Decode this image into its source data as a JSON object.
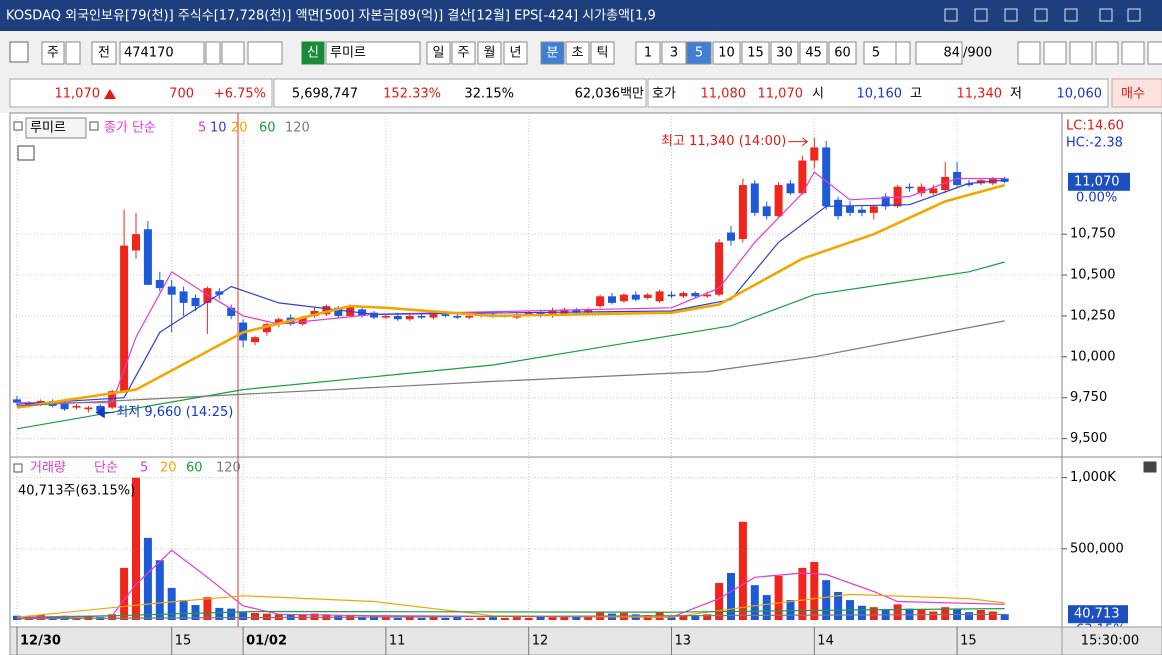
{
  "title_bar": {
    "text": "KOSDAQ 외국인보유[79(천)] 주식수[17,728(천)] 액면[500] 자본금[89(억)] 결산[12월] EPS[-424] 시가총액[1,9"
  },
  "toolbar": {
    "market": "주",
    "prev": "전",
    "code": "474170",
    "credit": "신",
    "name": "루미르",
    "periods": [
      "일",
      "주",
      "월",
      "년",
      "분",
      "초",
      "틱"
    ],
    "intervals": [
      "1",
      "3",
      "5",
      "10",
      "15",
      "30",
      "45",
      "60"
    ],
    "unit": "5",
    "count": "84",
    "total": "/900"
  },
  "quote_bar": {
    "price": "11,070",
    "change": "700",
    "change_rate": "+6.75%",
    "volume": "5,698,747",
    "ratio1": "152.33%",
    "ratio2": "32.15%",
    "amount": "62,036백만",
    "ask_label": "호가",
    "ask": "11,080",
    "bid": "11,070",
    "open_label": "시",
    "open": "10,160",
    "high_label": "고",
    "high": "11,340",
    "low_label": "저",
    "low": "10,060",
    "buy": "매수"
  },
  "status_time": "15:30:00",
  "chart_data": [
    {
      "type": "candlestick",
      "name": "루미르",
      "legend_label": "종가 단순",
      "up_color": "#f0261c",
      "down_color": "#1c5ad8",
      "open": [
        9740,
        9700,
        9710,
        9730,
        9720,
        9690,
        9680,
        9700,
        9690,
        9790,
        10650,
        10780,
        10470,
        10430,
        10400,
        10360,
        10330,
        10400,
        10300,
        10210,
        10090,
        10150,
        10200,
        10240,
        10200,
        10250,
        10260,
        10300,
        10250,
        10290,
        10270,
        10240,
        10250,
        10230,
        10250,
        10240,
        10260,
        10250,
        10240,
        10250,
        10260,
        10250,
        10240,
        10260,
        10270,
        10250,
        10260,
        10290,
        10270,
        10310,
        10370,
        10340,
        10380,
        10360,
        10340,
        10380,
        10370,
        10390,
        10370,
        10380,
        10760,
        10720,
        11060,
        10920,
        10860,
        11060,
        11000,
        11200,
        11280,
        10960,
        10920,
        10900,
        10880,
        10980,
        10920,
        11040,
        11000,
        11000,
        11020,
        11130,
        11060,
        11060,
        11060,
        11090
      ],
      "high": [
        9760,
        9730,
        9740,
        9740,
        9730,
        9710,
        9700,
        9710,
        9800,
        10900,
        10880,
        10830,
        10520,
        10470,
        10430,
        10380,
        10430,
        10420,
        10320,
        10230,
        10130,
        10210,
        10240,
        10260,
        10250,
        10300,
        10320,
        10310,
        10320,
        10300,
        10280,
        10260,
        10270,
        10260,
        10260,
        10270,
        10270,
        10260,
        10260,
        10270,
        10270,
        10260,
        10270,
        10280,
        10280,
        10300,
        10300,
        10300,
        10300,
        10380,
        10390,
        10390,
        10400,
        10390,
        10410,
        10400,
        10400,
        10400,
        10400,
        10720,
        10800,
        11090,
        11080,
        10950,
        11070,
        11080,
        11230,
        11340,
        11320,
        10980,
        10950,
        10920,
        10930,
        11000,
        11050,
        11060,
        11060,
        11050,
        11190,
        11190,
        11080,
        11090,
        11100,
        11100
      ],
      "low": [
        9700,
        9690,
        9700,
        9690,
        9670,
        9680,
        9660,
        9660,
        9680,
        9780,
        10600,
        10440,
        10400,
        10150,
        10250,
        10280,
        10140,
        10350,
        10230,
        10060,
        10070,
        10130,
        10180,
        10190,
        10190,
        10240,
        10250,
        10240,
        10240,
        10240,
        10230,
        10230,
        10220,
        10220,
        10230,
        10230,
        10240,
        10230,
        10230,
        10240,
        10240,
        10240,
        10230,
        10250,
        10240,
        10240,
        10250,
        10260,
        10260,
        10300,
        10320,
        10330,
        10340,
        10350,
        10330,
        10360,
        10360,
        10360,
        10360,
        10370,
        10680,
        10700,
        10860,
        10840,
        10850,
        10990,
        10990,
        11150,
        10900,
        10840,
        10860,
        10860,
        10840,
        10900,
        10910,
        11010,
        10980,
        10990,
        11000,
        11040,
        11040,
        11050,
        11050,
        11060
      ],
      "close": [
        9720,
        9720,
        9730,
        9700,
        9680,
        9700,
        9690,
        9670,
        9790,
        10680,
        10750,
        10440,
        10420,
        10380,
        10330,
        10310,
        10420,
        10380,
        10250,
        10100,
        10120,
        10200,
        10230,
        10200,
        10240,
        10280,
        10310,
        10250,
        10310,
        10250,
        10240,
        10250,
        10230,
        10250,
        10240,
        10260,
        10250,
        10240,
        10250,
        10260,
        10250,
        10250,
        10260,
        10270,
        10250,
        10280,
        10290,
        10270,
        10290,
        10370,
        10330,
        10380,
        10350,
        10380,
        10400,
        10370,
        10390,
        10370,
        10380,
        10700,
        10710,
        11050,
        10880,
        10860,
        11050,
        11000,
        11200,
        11280,
        10920,
        10860,
        10880,
        10880,
        10920,
        10920,
        11040,
        11030,
        11040,
        11030,
        11100,
        11050,
        11050,
        11080,
        11090,
        11070
      ],
      "ylim": [
        9400,
        11460
      ],
      "yticks": [
        {
          "value": 9500,
          "label": "9,500"
        },
        {
          "value": 9750,
          "label": "9,750"
        },
        {
          "value": 10000,
          "label": "10,000"
        },
        {
          "value": 10250,
          "label": "10,250"
        },
        {
          "value": 10500,
          "label": "10,500"
        },
        {
          "value": 10750,
          "label": "10,750"
        }
      ],
      "xticks": [
        {
          "value": 0,
          "label": "12/30"
        },
        {
          "value": 13,
          "label": "15"
        },
        {
          "value": 19,
          "label": "01/02"
        },
        {
          "value": 31,
          "label": "11"
        },
        {
          "value": 43,
          "label": "12"
        },
        {
          "value": 55,
          "label": "13"
        },
        {
          "value": 67,
          "label": "14"
        },
        {
          "value": 79,
          "label": "15"
        }
      ],
      "series": [
        {
          "name": "5",
          "color": "#e23ad2",
          "x": [
            0,
            8,
            10,
            13,
            16,
            19,
            22,
            30,
            55,
            59,
            62,
            66,
            67,
            70,
            75,
            79,
            83
          ],
          "values": [
            9720,
            9720,
            10120,
            10520,
            10380,
            10250,
            10200,
            10260,
            10300,
            10420,
            10700,
            11000,
            11130,
            10960,
            10980,
            11090,
            11090
          ]
        },
        {
          "name": "10",
          "color": "#2a3fd6",
          "x": [
            0,
            9,
            12,
            18,
            22,
            30,
            55,
            60,
            64,
            68,
            75,
            80,
            83
          ],
          "values": [
            9710,
            9750,
            10150,
            10430,
            10330,
            10260,
            10280,
            10350,
            10700,
            10920,
            10930,
            11060,
            11080
          ]
        },
        {
          "name": "20",
          "color": "#f0a800",
          "x": [
            0,
            10,
            19,
            28,
            31,
            40,
            55,
            59,
            66,
            72,
            78,
            83
          ],
          "values": [
            9690,
            9800,
            10150,
            10310,
            10300,
            10250,
            10270,
            10320,
            10600,
            10750,
            10950,
            11050
          ]
        },
        {
          "name": "60",
          "color": "#1a9e3c",
          "x": [
            0,
            19,
            40,
            60,
            67,
            80,
            83
          ],
          "values": [
            9560,
            9800,
            9950,
            10190,
            10380,
            10520,
            10580
          ]
        },
        {
          "name": "120",
          "color": "#7a7a7a",
          "x": [
            0,
            40,
            58,
            67,
            83
          ],
          "values": [
            9700,
            9850,
            9910,
            10000,
            10220
          ]
        }
      ],
      "annotations": [
        "최고 11,340 (14:00)",
        "최저 9,660 (14:25)"
      ],
      "side_labels": [
        "LC:14.60",
        "HC:-2.38"
      ],
      "last_price_label": "11,070",
      "last_change_label": "0.00%"
    },
    {
      "type": "bar",
      "name": "거래량",
      "legend_label": "단순",
      "up_color": "#f0261c",
      "down_color": "#1c5ad8",
      "values": [
        30000,
        25000,
        35000,
        20000,
        30000,
        15000,
        25000,
        20000,
        40000,
        366000,
        1000000,
        577000,
        420000,
        225000,
        140000,
        105000,
        160000,
        85000,
        80000,
        60000,
        50000,
        45000,
        40000,
        35000,
        40000,
        45000,
        40000,
        30000,
        35000,
        25000,
        30000,
        20000,
        15000,
        25000,
        15000,
        20000,
        15000,
        20000,
        10000,
        15000,
        20000,
        15000,
        20000,
        15000,
        25000,
        20000,
        25000,
        30000,
        20000,
        60000,
        45000,
        50000,
        40000,
        35000,
        55000,
        30000,
        35000,
        30000,
        40000,
        260000,
        330000,
        690000,
        245000,
        175000,
        310000,
        140000,
        366000,
        408000,
        280000,
        197000,
        140000,
        100000,
        90000,
        70000,
        110000,
        80000,
        75000,
        60000,
        90000,
        80000,
        55000,
        70000,
        60000,
        40713
      ],
      "ylim": [
        0,
        1110000
      ],
      "yticks": [
        {
          "value": 500000,
          "label": "500,000"
        },
        {
          "value": 1000000,
          "label": "1,000K"
        }
      ],
      "series": [
        {
          "name": "5",
          "color": "#e23ad2",
          "x": [
            0,
            8,
            10,
            13,
            16,
            19,
            22,
            30,
            55,
            59,
            62,
            66,
            68,
            72,
            74,
            83
          ],
          "values": [
            20000,
            30000,
            250000,
            490000,
            300000,
            100000,
            40000,
            30000,
            20000,
            150000,
            300000,
            330000,
            320000,
            200000,
            130000,
            110000
          ]
        },
        {
          "name": "20",
          "color": "#f0a800",
          "x": [
            0,
            12,
            19,
            30,
            40,
            55,
            62,
            70,
            80,
            83
          ],
          "values": [
            20000,
            120000,
            170000,
            130000,
            30000,
            20000,
            100000,
            180000,
            150000,
            120000
          ]
        },
        {
          "name": "60",
          "color": "#1a9e3c",
          "x": [
            0,
            20,
            55,
            70,
            83
          ],
          "values": [
            10000,
            60000,
            55000,
            70000,
            80000
          ]
        },
        {
          "name": "120",
          "color": "#7a7a7a",
          "x": [
            0,
            83
          ],
          "values": [
            10000,
            40000
          ]
        }
      ],
      "status_label": "40,713주(63.15%)",
      "last_value_label": "40,713",
      "last_ratio_label": "63.15%"
    }
  ]
}
